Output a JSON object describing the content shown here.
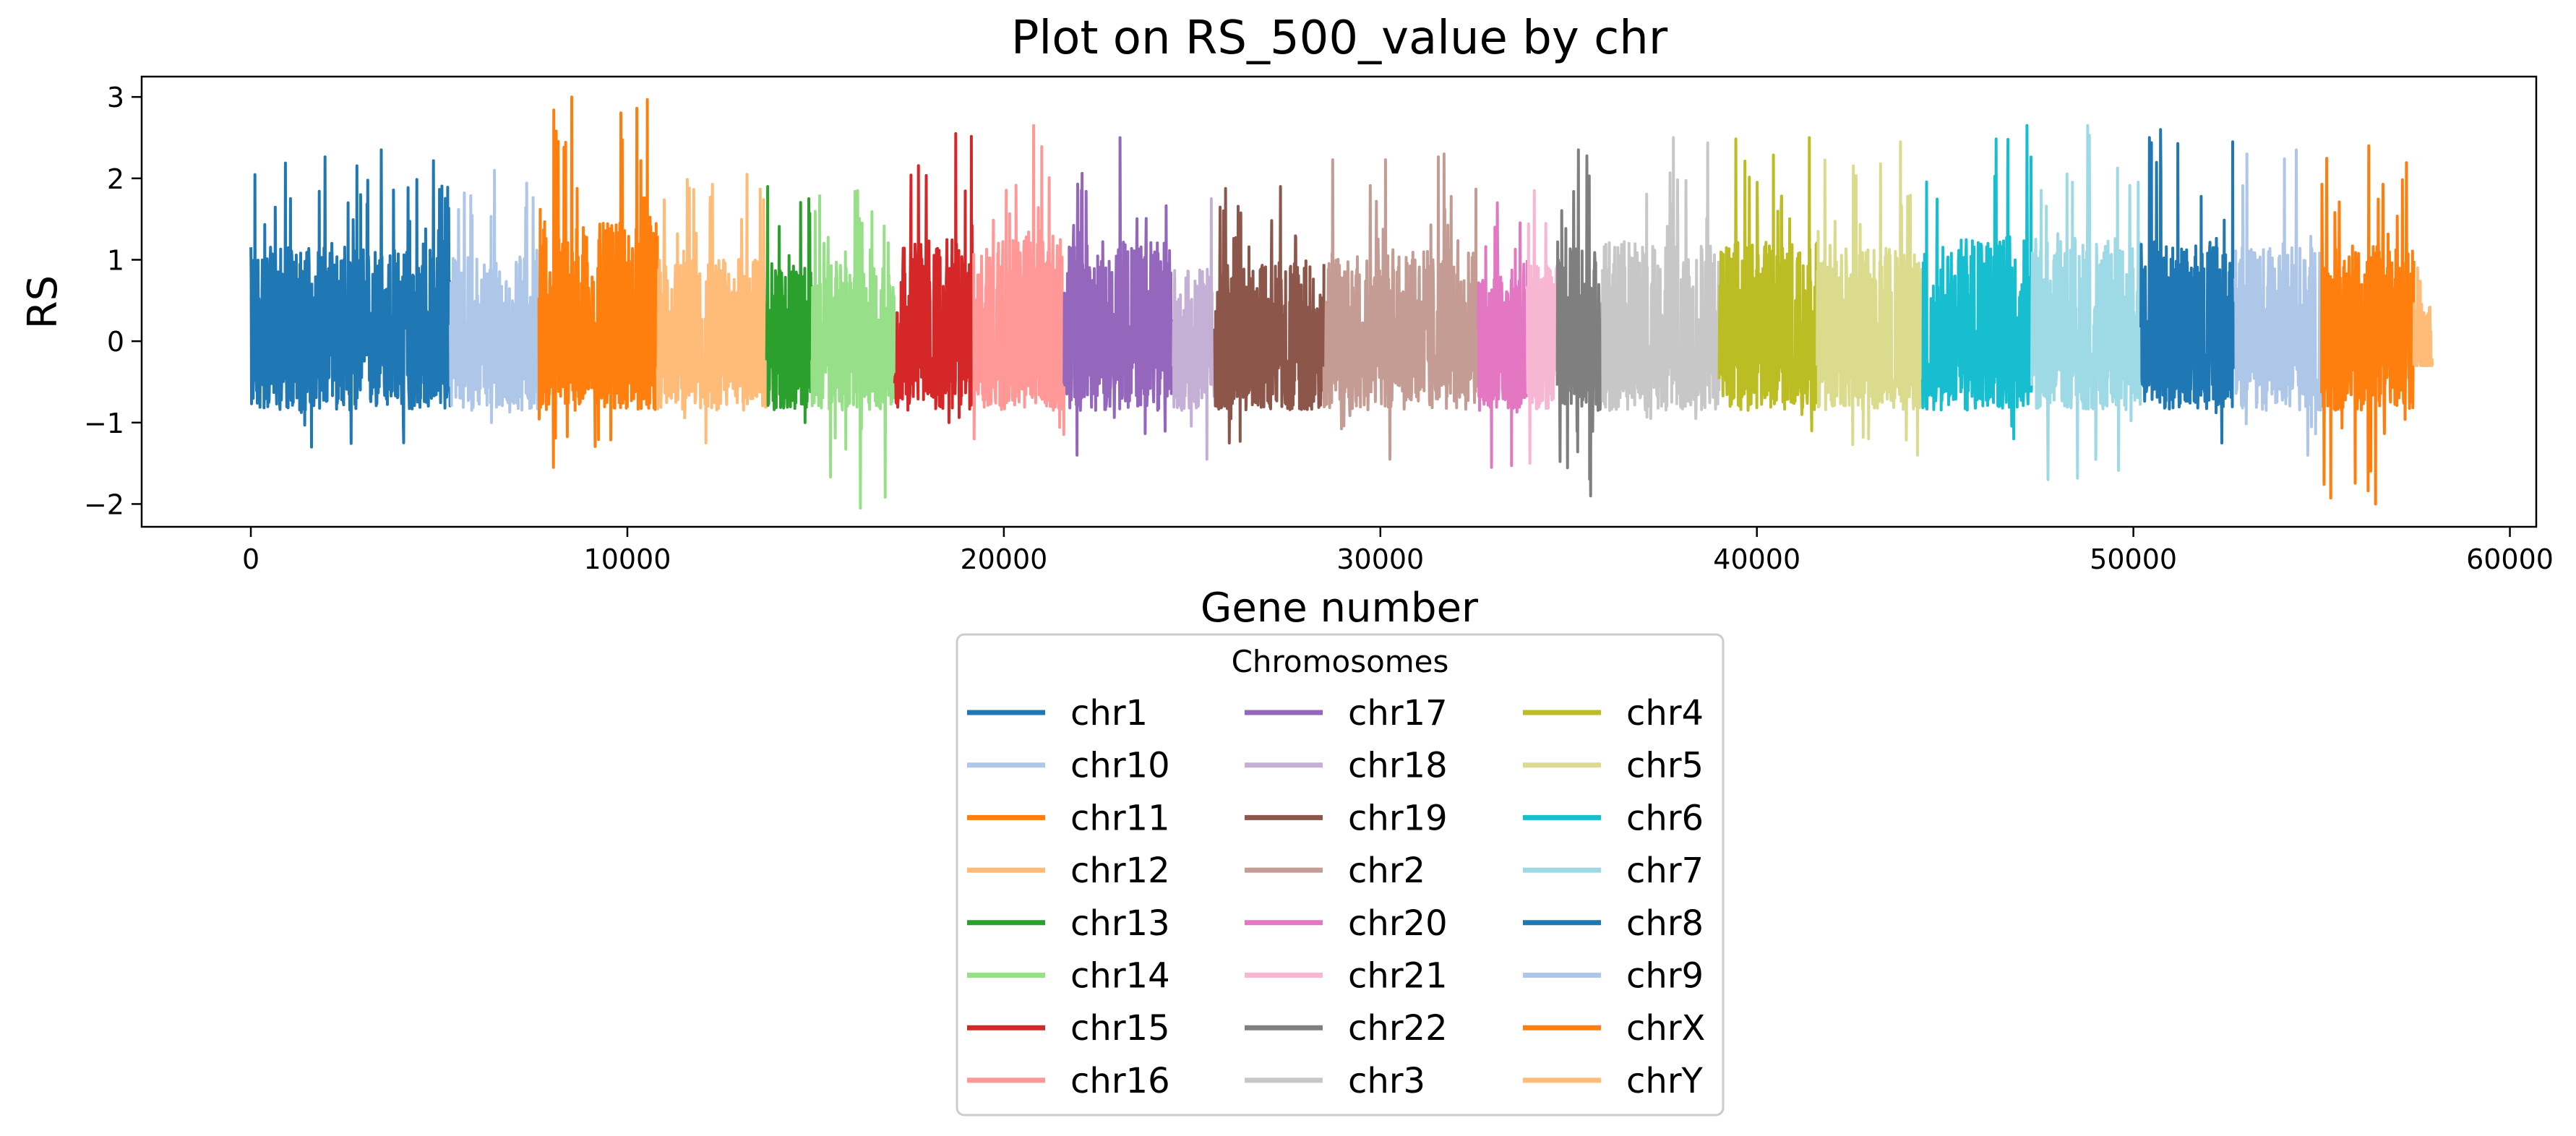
{
  "chart_data": {
    "type": "line",
    "title": "Plot on RS_500_value by chr",
    "xlabel": "Gene number",
    "ylabel": "RS",
    "xlim": [
      -2900,
      60700
    ],
    "ylim": [
      -2.28,
      3.25
    ],
    "xticks": [
      0,
      10000,
      20000,
      30000,
      40000,
      50000,
      60000
    ],
    "xtick_labels": [
      "0",
      "10000",
      "20000",
      "30000",
      "40000",
      "50000",
      "60000"
    ],
    "yticks": [
      -2,
      -1,
      0,
      1,
      2,
      3
    ],
    "ytick_labels": [
      "−2",
      "−1",
      "0",
      "1",
      "2",
      "3"
    ],
    "grid": false,
    "legend": {
      "title": "Chromosomes",
      "placement": "bottom-center",
      "columns": 3
    },
    "series": [
      {
        "name": "chr1",
        "color": "#1f77b4",
        "x_range": [
          0,
          5300
        ],
        "y_min": -1.3,
        "y_max": 2.35
      },
      {
        "name": "chr10",
        "color": "#aec7e8",
        "x_range": [
          5300,
          7650
        ],
        "y_min": -1.0,
        "y_max": 2.1
      },
      {
        "name": "chr11",
        "color": "#ff7f0e",
        "x_range": [
          7650,
          10800
        ],
        "y_min": -1.55,
        "y_max": 3.0
      },
      {
        "name": "chr12",
        "color": "#ffbb78",
        "x_range": [
          10800,
          13700
        ],
        "y_min": -1.25,
        "y_max": 2.05
      },
      {
        "name": "chr13",
        "color": "#2ca02c",
        "x_range": [
          13700,
          14900
        ],
        "y_min": -1.0,
        "y_max": 1.9
      },
      {
        "name": "chr14",
        "color": "#98df8a",
        "x_range": [
          14900,
          17100
        ],
        "y_min": -2.05,
        "y_max": 1.85
      },
      {
        "name": "chr15",
        "color": "#d62728",
        "x_range": [
          17100,
          19200
        ],
        "y_min": -1.0,
        "y_max": 2.55
      },
      {
        "name": "chr16",
        "color": "#ff9896",
        "x_range": [
          19200,
          21600
        ],
        "y_min": -1.2,
        "y_max": 2.65
      },
      {
        "name": "chr17",
        "color": "#9467bd",
        "x_range": [
          21600,
          24500
        ],
        "y_min": -1.4,
        "y_max": 2.5
      },
      {
        "name": "chr18",
        "color": "#c5b0d5",
        "x_range": [
          24500,
          25600
        ],
        "y_min": -1.45,
        "y_max": 1.75
      },
      {
        "name": "chr19",
        "color": "#8c564b",
        "x_range": [
          25600,
          28500
        ],
        "y_min": -1.25,
        "y_max": 1.9
      },
      {
        "name": "chr2",
        "color": "#c49c94",
        "x_range": [
          28500,
          32600
        ],
        "y_min": -1.45,
        "y_max": 2.3
      },
      {
        "name": "chr20",
        "color": "#e377c2",
        "x_range": [
          32600,
          33900
        ],
        "y_min": -1.55,
        "y_max": 1.7
      },
      {
        "name": "chr21",
        "color": "#f7b6d2",
        "x_range": [
          33900,
          34700
        ],
        "y_min": -1.5,
        "y_max": 1.85
      },
      {
        "name": "chr22",
        "color": "#7f7f7f",
        "x_range": [
          34700,
          35900
        ],
        "y_min": -1.9,
        "y_max": 2.35
      },
      {
        "name": "chr3",
        "color": "#c7c7c7",
        "x_range": [
          35900,
          39000
        ],
        "y_min": -0.95,
        "y_max": 2.5
      },
      {
        "name": "chr4",
        "color": "#bcbd22",
        "x_range": [
          39000,
          41600
        ],
        "y_min": -1.1,
        "y_max": 2.5
      },
      {
        "name": "chr5",
        "color": "#dbdb8d",
        "x_range": [
          41600,
          44400
        ],
        "y_min": -1.4,
        "y_max": 2.45
      },
      {
        "name": "chr6",
        "color": "#17becf",
        "x_range": [
          44400,
          47300
        ],
        "y_min": -1.2,
        "y_max": 2.65
      },
      {
        "name": "chr7",
        "color": "#9edae5",
        "x_range": [
          47300,
          50200
        ],
        "y_min": -1.7,
        "y_max": 2.65
      },
      {
        "name": "chr8",
        "color": "#1f77b4",
        "x_range": [
          50200,
          52700
        ],
        "y_min": -1.25,
        "y_max": 2.6
      },
      {
        "name": "chr9",
        "color": "#aec7e8",
        "x_range": [
          52700,
          55000
        ],
        "y_min": -1.4,
        "y_max": 2.35
      },
      {
        "name": "chrX",
        "color": "#ff7f0e",
        "x_range": [
          55000,
          57450
        ],
        "y_min": -2.0,
        "y_max": 2.4
      },
      {
        "name": "chrY",
        "color": "#ffbb78",
        "x_range": [
          57450,
          57950
        ],
        "y_min": -0.3,
        "y_max": 0.9
      }
    ]
  }
}
